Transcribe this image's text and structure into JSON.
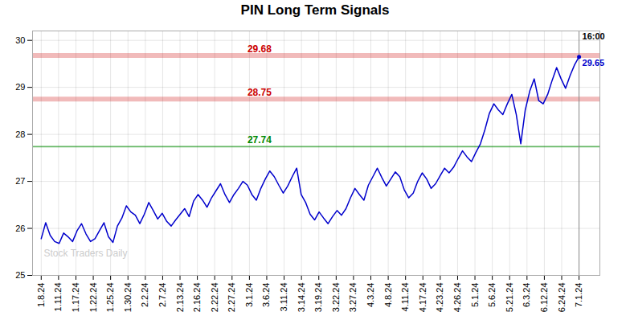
{
  "chart_data": {
    "type": "line",
    "title": "PIN Long Term Signals",
    "color": "#0000cc",
    "x": [
      0,
      0.2583,
      0.5167,
      0.775,
      1.0333,
      1.2917,
      1.55,
      1.8083,
      2.0667,
      2.325,
      2.5833,
      2.8417,
      3.1,
      3.3583,
      3.6167,
      3.875,
      4.1333,
      4.3917,
      4.65,
      4.9083,
      5.1667,
      5.425,
      5.6833,
      5.9417,
      6.2,
      6.4583,
      6.7167,
      6.975,
      7.2333,
      7.4917,
      7.75,
      8.0083,
      8.2667,
      8.525,
      8.7833,
      9.0417,
      9.3,
      9.5583,
      9.8167,
      10.075,
      10.3333,
      10.5917,
      10.85,
      11.1083,
      11.3667,
      11.625,
      11.8833,
      12.1417,
      12.4,
      12.6583,
      12.9167,
      13.175,
      13.4333,
      13.6917,
      13.95,
      14.2083,
      14.4667,
      14.725,
      14.9833,
      15.2417,
      15.5,
      15.7583,
      16.0167,
      16.275,
      16.5333,
      16.7917,
      17.05,
      17.3083,
      17.5667,
      17.825,
      18.0833,
      18.3417,
      18.6,
      18.8583,
      19.1167,
      19.375,
      19.6333,
      19.8917,
      20.15,
      20.4083,
      20.6667,
      20.925,
      21.1833,
      21.4417,
      21.7,
      21.9583,
      22.2167,
      22.475,
      22.7333,
      22.9917,
      23.25,
      23.5083,
      23.7667,
      24.025,
      24.2833,
      24.5417,
      24.8,
      25.0583,
      25.3167,
      25.575,
      25.8333,
      26.0917,
      26.35,
      26.6083,
      26.8667,
      27.125,
      27.3833,
      27.6417,
      27.9,
      28.1583,
      28.4167,
      28.675,
      28.9333,
      29.1917,
      29.45,
      29.7083,
      29.9667,
      30.225,
      30.4833,
      30.7417,
      31
    ],
    "values": [
      25.78,
      26.12,
      25.85,
      25.72,
      25.68,
      25.9,
      25.82,
      25.72,
      25.95,
      26.1,
      25.88,
      25.72,
      25.78,
      25.95,
      26.12,
      25.82,
      25.7,
      26.05,
      26.22,
      26.48,
      26.35,
      26.28,
      26.1,
      26.3,
      26.55,
      26.38,
      26.2,
      26.32,
      26.15,
      26.05,
      26.18,
      26.3,
      26.42,
      26.25,
      26.58,
      26.72,
      26.6,
      26.45,
      26.65,
      26.8,
      26.95,
      26.72,
      26.55,
      26.72,
      26.85,
      27.0,
      26.92,
      26.72,
      26.6,
      26.85,
      27.05,
      27.22,
      27.1,
      26.92,
      26.75,
      26.9,
      27.1,
      27.28,
      26.72,
      26.55,
      26.3,
      26.18,
      26.35,
      26.22,
      26.1,
      26.25,
      26.38,
      26.28,
      26.42,
      26.65,
      26.85,
      26.72,
      26.6,
      26.92,
      27.1,
      27.28,
      27.08,
      26.9,
      27.05,
      27.2,
      27.1,
      26.82,
      26.65,
      26.75,
      27.0,
      27.18,
      27.05,
      26.85,
      26.95,
      27.12,
      27.28,
      27.18,
      27.3,
      27.48,
      27.65,
      27.52,
      27.42,
      27.62,
      27.8,
      28.1,
      28.45,
      28.65,
      28.52,
      28.42,
      28.65,
      28.85,
      28.42,
      27.8,
      28.52,
      28.92,
      29.18,
      28.72,
      28.65,
      28.85,
      29.15,
      29.42,
      29.18,
      28.98,
      29.25,
      29.48,
      29.65
    ],
    "xlim": [
      -0.5,
      32.2
    ],
    "xticks": [
      {
        "value": 0,
        "label": "1.8.24"
      },
      {
        "value": 1,
        "label": "1.11.24"
      },
      {
        "value": 2,
        "label": "1.17.24"
      },
      {
        "value": 3,
        "label": "1.22.24"
      },
      {
        "value": 4,
        "label": "1.25.24"
      },
      {
        "value": 5,
        "label": "1.30.24"
      },
      {
        "value": 6,
        "label": "2.2.24"
      },
      {
        "value": 7,
        "label": "2.7.24"
      },
      {
        "value": 8,
        "label": "2.13.24"
      },
      {
        "value": 9,
        "label": "2.16.24"
      },
      {
        "value": 10,
        "label": "2.22.24"
      },
      {
        "value": 11,
        "label": "2.27.24"
      },
      {
        "value": 12,
        "label": "3.1.24"
      },
      {
        "value": 13,
        "label": "3.6.24"
      },
      {
        "value": 14,
        "label": "3.11.24"
      },
      {
        "value": 15,
        "label": "3.14.24"
      },
      {
        "value": 16,
        "label": "3.19.24"
      },
      {
        "value": 17,
        "label": "3.22.24"
      },
      {
        "value": 18,
        "label": "3.27.24"
      },
      {
        "value": 19,
        "label": "4.3.24"
      },
      {
        "value": 20,
        "label": "4.8.24"
      },
      {
        "value": 21,
        "label": "4.11.24"
      },
      {
        "value": 22,
        "label": "4.17.24"
      },
      {
        "value": 23,
        "label": "4.23.24"
      },
      {
        "value": 24,
        "label": "4.26.24"
      },
      {
        "value": 25,
        "label": "5.1.24"
      },
      {
        "value": 26,
        "label": "5.6.24"
      },
      {
        "value": 27,
        "label": "5.21.24"
      },
      {
        "value": 28,
        "label": "6.3.24"
      },
      {
        "value": 29,
        "label": "6.12.24"
      },
      {
        "value": 30,
        "label": "6.24.24"
      },
      {
        "value": 31,
        "label": "7.1.24"
      }
    ],
    "ylim": [
      25,
      30.2
    ],
    "yticks": [
      25,
      26,
      27,
      28,
      29,
      30
    ],
    "grid": true,
    "reference_lines": [
      {
        "value": 29.68,
        "color": "#cc0000",
        "line_style": "band"
      },
      {
        "value": 28.75,
        "color": "#cc0000",
        "line_style": "band"
      },
      {
        "value": 27.74,
        "color": "#008800",
        "line_style": "solid"
      }
    ],
    "last_price": 29.65,
    "last_time": "16:00",
    "watermark": "Stock Traders Daily"
  }
}
